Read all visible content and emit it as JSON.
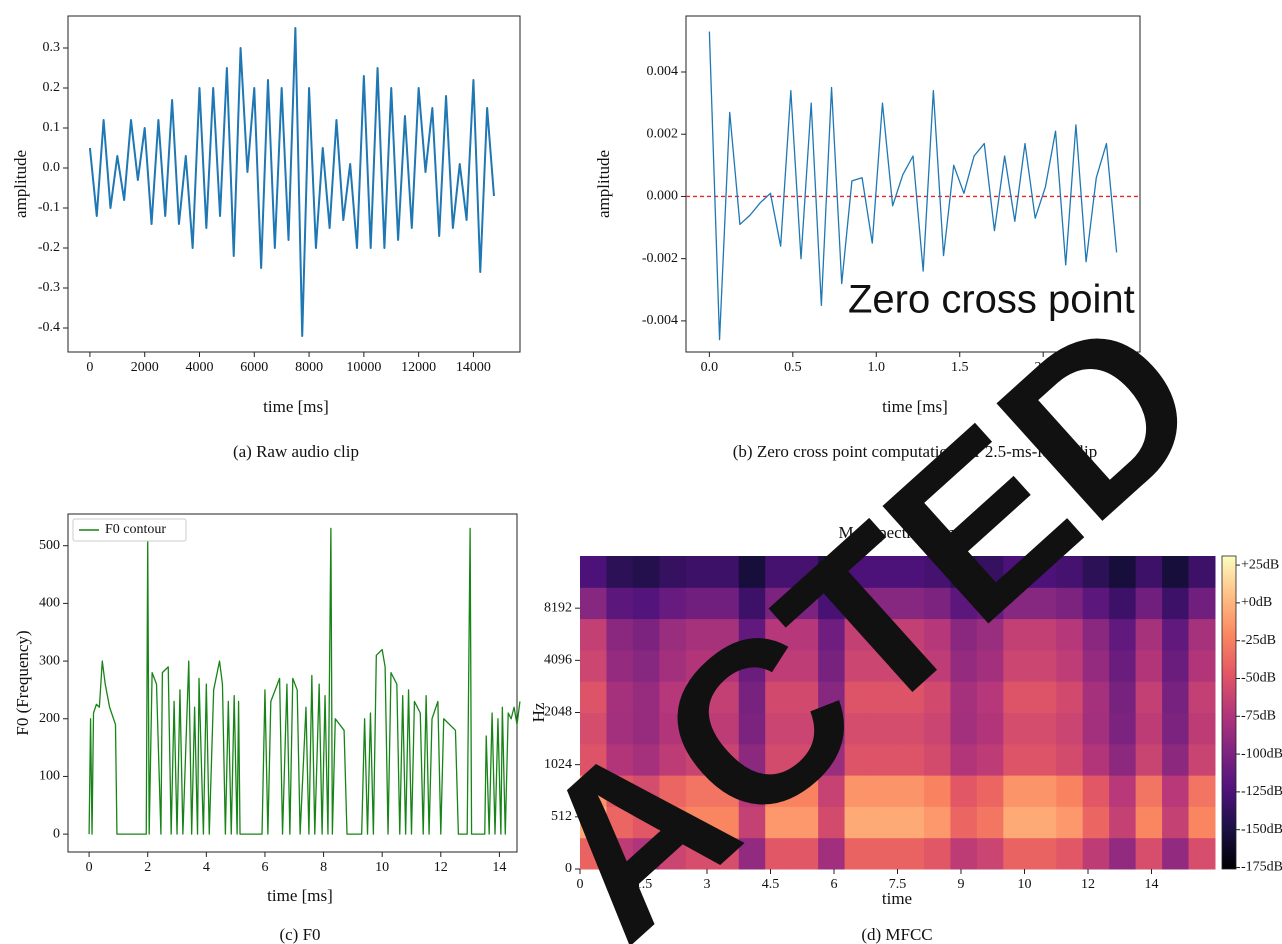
{
  "chart_data": [
    {
      "type": "line",
      "caption": "(a) Raw audio clip",
      "xlabel": "time [ms]",
      "ylabel": "amplitude",
      "x": [
        0,
        250,
        500,
        750,
        1000,
        1250,
        1500,
        1750,
        2000,
        2250,
        2500,
        2750,
        3000,
        3250,
        3500,
        3750,
        4000,
        4250,
        4500,
        4750,
        5000,
        5250,
        5500,
        5750,
        6000,
        6250,
        6500,
        6750,
        7000,
        7250,
        7500,
        7750,
        8000,
        8250,
        8500,
        8750,
        9000,
        9250,
        9500,
        9750,
        10000,
        10250,
        10500,
        10750,
        11000,
        11250,
        11500,
        11750,
        12000,
        12250,
        12500,
        12750,
        13000,
        13250,
        13500,
        13750,
        14000,
        14250,
        14500,
        14750
      ],
      "series": [
        {
          "color": "#1f77b4",
          "values": [
            0.05,
            -0.12,
            0.12,
            -0.1,
            0.03,
            -0.08,
            0.12,
            -0.03,
            0.1,
            -0.14,
            0.12,
            -0.12,
            0.17,
            -0.14,
            0.03,
            -0.2,
            0.2,
            -0.15,
            0.2,
            -0.12,
            0.25,
            -0.22,
            0.3,
            -0.01,
            0.2,
            -0.25,
            0.22,
            -0.2,
            0.2,
            -0.18,
            0.35,
            -0.42,
            0.2,
            -0.2,
            0.05,
            -0.15,
            0.12,
            -0.13,
            0.01,
            -0.2,
            0.23,
            -0.2,
            0.25,
            -0.2,
            0.2,
            -0.18,
            0.13,
            -0.15,
            0.2,
            -0.01,
            0.15,
            -0.17,
            0.18,
            -0.15,
            0.01,
            -0.13,
            0.22,
            -0.26,
            0.15,
            -0.07
          ]
        }
      ],
      "xlim": [
        -800,
        15700
      ],
      "xticks": [
        0,
        2000,
        4000,
        6000,
        8000,
        10000,
        12000,
        14000
      ],
      "ylim": [
        -0.46,
        0.38
      ],
      "yticks": [
        -0.4,
        -0.3,
        -0.2,
        -0.1,
        {
          "value": 0,
          "label": "0.0"
        },
        0.1,
        0.2,
        0.3
      ]
    },
    {
      "type": "line",
      "caption": "(b) Zero cross point computation for 2.5-ms-long clip",
      "xlabel": "time [ms]",
      "ylabel": "amplitude",
      "annotation": "Zero cross point",
      "reference_line": 0,
      "reference_color": "#e8262a",
      "x": [
        0,
        0.061,
        0.122,
        0.183,
        0.244,
        0.305,
        0.366,
        0.427,
        0.488,
        0.549,
        0.61,
        0.671,
        0.732,
        0.793,
        0.854,
        0.915,
        0.976,
        1.037,
        1.098,
        1.159,
        1.22,
        1.281,
        1.342,
        1.403,
        1.464,
        1.525,
        1.586,
        1.647,
        1.708,
        1.769,
        1.83,
        1.891,
        1.952,
        2.013,
        2.074,
        2.135,
        2.196,
        2.257,
        2.318,
        2.379,
        2.44
      ],
      "series": [
        {
          "color": "#1f77b4",
          "values": [
            0.0053,
            -0.0046,
            0.0027,
            -0.0009,
            -0.0006,
            -0.0002,
            0.0001,
            -0.0016,
            0.0034,
            -0.002,
            0.003,
            -0.0035,
            0.0035,
            -0.0028,
            0.0005,
            0.0006,
            -0.0015,
            0.003,
            -0.0003,
            0.0007,
            0.0013,
            -0.0024,
            0.0034,
            -0.0019,
            0.001,
            0.0001,
            0.0013,
            0.0017,
            -0.0011,
            0.0013,
            -0.0008,
            0.0017,
            -0.0007,
            0.0003,
            0.0021,
            -0.0022,
            0.0023,
            -0.0021,
            0.0006,
            0.0017,
            -0.0018
          ]
        }
      ],
      "xlim": [
        -0.14,
        2.58
      ],
      "xticks": [
        {
          "value": 0,
          "label": "0.0"
        },
        0.5,
        {
          "value": 1,
          "label": "1.0"
        },
        1.5,
        {
          "value": 2,
          "label": "2.0"
        },
        2.5
      ],
      "ylim": [
        -0.005,
        0.0058
      ],
      "yticks": [
        -0.004,
        -0.002,
        {
          "value": 0,
          "label": "0.000"
        },
        0.002,
        0.004
      ]
    },
    {
      "type": "line",
      "caption": "(c) F0",
      "xlabel": "time [ms]",
      "ylabel": "F0 (Frequency)",
      "legend": "upper left",
      "x": [
        0,
        0.05,
        0.1,
        0.15,
        0.25,
        0.35,
        0.45,
        0.55,
        0.7,
        0.9,
        0.95,
        1.5,
        1.95,
        2.0,
        2.05,
        2.15,
        2.3,
        2.45,
        2.5,
        2.7,
        2.8,
        2.9,
        3.0,
        3.1,
        3.2,
        3.4,
        3.5,
        3.6,
        3.7,
        3.75,
        3.9,
        4.0,
        4.1,
        4.25,
        4.45,
        4.55,
        4.65,
        4.75,
        4.85,
        4.95,
        5.05,
        5.1,
        5.15,
        5.9,
        6.0,
        6.1,
        6.2,
        6.5,
        6.6,
        6.75,
        6.85,
        6.95,
        7.1,
        7.2,
        7.4,
        7.5,
        7.6,
        7.7,
        7.85,
        7.95,
        8.05,
        8.15,
        8.25,
        8.3,
        8.4,
        8.7,
        8.8,
        9.3,
        9.4,
        9.5,
        9.6,
        9.7,
        9.8,
        10.0,
        10.1,
        10.2,
        10.3,
        10.5,
        10.6,
        10.7,
        10.8,
        10.9,
        11.0,
        11.1,
        11.3,
        11.4,
        11.5,
        11.6,
        11.7,
        11.9,
        12.0,
        12.1,
        12.5,
        12.6,
        12.9,
        13.0,
        13.05,
        13.5,
        13.55,
        13.65,
        13.75,
        13.85,
        13.95,
        14.05,
        14.1,
        14.2,
        14.3,
        14.4,
        14.5,
        14.6,
        14.7
      ],
      "series": [
        {
          "name": "F0 contour",
          "color": "#178417",
          "values": [
            0,
            200,
            0,
            210,
            225,
            220,
            300,
            260,
            220,
            190,
            0,
            0,
            0,
            510,
            0,
            280,
            260,
            0,
            280,
            290,
            0,
            230,
            0,
            250,
            0,
            300,
            0,
            220,
            0,
            270,
            0,
            260,
            0,
            250,
            300,
            260,
            0,
            230,
            0,
            240,
            0,
            230,
            0,
            0,
            250,
            0,
            230,
            270,
            0,
            260,
            0,
            270,
            250,
            0,
            220,
            0,
            275,
            0,
            260,
            0,
            240,
            0,
            530,
            0,
            200,
            180,
            0,
            0,
            200,
            0,
            210,
            0,
            310,
            320,
            290,
            0,
            280,
            260,
            0,
            240,
            0,
            250,
            0,
            230,
            210,
            0,
            240,
            0,
            200,
            230,
            0,
            200,
            180,
            0,
            0,
            530,
            0,
            0,
            170,
            0,
            210,
            0,
            200,
            0,
            220,
            0,
            210,
            200,
            220,
            190,
            230
          ]
        }
      ],
      "xlim": [
        -0.72,
        14.6
      ],
      "xticks": [
        0,
        2,
        4,
        6,
        8,
        10,
        12,
        14
      ],
      "ylim": [
        -31,
        555
      ],
      "yticks": [
        0,
        100,
        200,
        300,
        400,
        500
      ]
    },
    {
      "type": "heatmap",
      "title": "Mel-spectrogram",
      "caption": "(d) MFCC",
      "xlabel": "time",
      "ylabel": "Hz",
      "colormap": "magma",
      "yscale": "symlog",
      "xlim": [
        0,
        15
      ],
      "xticks": [
        0,
        1.5,
        3,
        4.5,
        6,
        7.5,
        9,
        {
          "value": 10.5,
          "label": "10"
        },
        12,
        {
          "value": 13.5,
          "label": "14"
        }
      ],
      "ylim": [
        0,
        16384
      ],
      "yticks": [
        0,
        512,
        1024,
        2048,
        4096,
        8192
      ],
      "clim": [
        -176,
        31
      ],
      "cticks": [
        {
          "value": 25,
          "label": "+25dB"
        },
        {
          "value": 0,
          "label": "+0dB"
        },
        {
          "value": -25,
          "label": "-25dB"
        },
        {
          "value": -50,
          "label": "-50dB"
        },
        {
          "value": -75,
          "label": "-75dB"
        },
        {
          "value": -100,
          "label": "-100dB"
        },
        {
          "value": -125,
          "label": "-125dB"
        },
        {
          "value": -150,
          "label": "-150dB"
        },
        {
          "value": -175,
          "label": "-175dB"
        }
      ],
      "z": [
        [
          -40,
          -68,
          -75,
          -61,
          -54,
          -54,
          -89,
          -47,
          -47,
          -82,
          -40,
          -40,
          -40,
          -47,
          -68,
          -61,
          -40,
          -40,
          -47,
          -68,
          -89,
          -54,
          -89,
          -54
        ],
        [
          -5,
          -39,
          -47,
          -30,
          -22,
          -22,
          -64,
          -13,
          -13,
          -56,
          -5,
          -5,
          -5,
          -13,
          -39,
          -30,
          -5,
          -5,
          -13,
          -39,
          -64,
          -22,
          -64,
          -22
        ],
        [
          -15,
          -47,
          -55,
          -39,
          -31,
          -31,
          -71,
          -23,
          -23,
          -63,
          -15,
          -15,
          -15,
          -23,
          -47,
          -39,
          -15,
          -15,
          -23,
          -47,
          -71,
          -31,
          -71,
          -31
        ],
        [
          -50,
          -74,
          -80,
          -68,
          -62,
          -62,
          -92,
          -56,
          -56,
          -86,
          -50,
          -50,
          -50,
          -56,
          -74,
          -68,
          -50,
          -50,
          -56,
          -74,
          -92,
          -62,
          -92,
          -62
        ],
        [
          -55,
          -81,
          -87,
          -74,
          -68,
          -68,
          -100,
          -61,
          -61,
          -94,
          -55,
          -55,
          -55,
          -61,
          -81,
          -74,
          -55,
          -55,
          -61,
          -81,
          -100,
          -68,
          -100,
          -68
        ],
        [
          -50,
          -80,
          -87,
          -72,
          -65,
          -65,
          -102,
          -57,
          -57,
          -95,
          -50,
          -50,
          -50,
          -57,
          -80,
          -72,
          -50,
          -50,
          -57,
          -80,
          -102,
          -65,
          -102,
          -65
        ],
        [
          -60,
          -88,
          -95,
          -81,
          -74,
          -74,
          -109,
          -67,
          -67,
          -102,
          -60,
          -60,
          -60,
          -67,
          -88,
          -81,
          -60,
          -60,
          -67,
          -88,
          -109,
          -74,
          -109,
          -74
        ],
        [
          -65,
          -93,
          -100,
          -86,
          -79,
          -79,
          -114,
          -72,
          -72,
          -107,
          -65,
          -65,
          -65,
          -72,
          -93,
          -86,
          -65,
          -65,
          -72,
          -93,
          -114,
          -79,
          -114,
          -79
        ],
        [
          -95,
          -117,
          -122,
          -111,
          -106,
          -106,
          -133,
          -100,
          -100,
          -128,
          -95,
          -95,
          -95,
          -100,
          -117,
          -111,
          -95,
          -95,
          -100,
          -117,
          -133,
          -106,
          -133,
          -106
        ],
        [
          -125,
          -141,
          -145,
          -137,
          -133,
          -133,
          -153,
          -129,
          -129,
          -149,
          -125,
          -125,
          -125,
          -129,
          -141,
          -137,
          -125,
          -125,
          -129,
          -141,
          -153,
          -133,
          -153,
          -133
        ]
      ]
    }
  ],
  "watermark": "ACTED"
}
